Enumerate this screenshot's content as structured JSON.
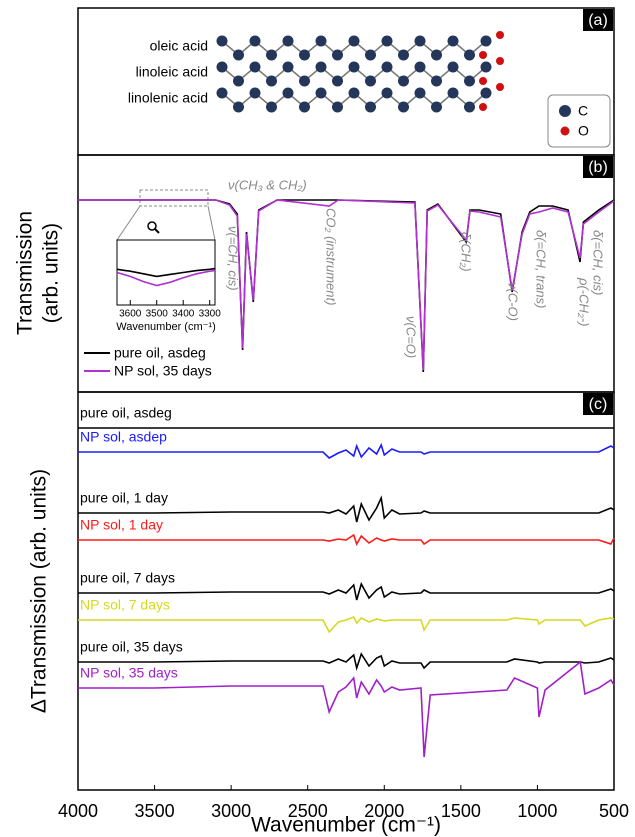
{
  "diagram": {
    "panel_label": "(a)",
    "molecules": [
      "oleic acid",
      "linoleic acid",
      "linolenic acid"
    ],
    "legend": [
      "C",
      "O"
    ]
  },
  "chart_data": [
    {
      "type": "line",
      "panel_label": "(b)",
      "y_label_lines": [
        "Transmission",
        "(arb. units)"
      ],
      "x": [
        4000,
        3100,
        3010,
        2960,
        2925,
        2900,
        2855,
        2820,
        2700,
        2360,
        2300,
        1800,
        1745,
        1720,
        1650,
        1465,
        1440,
        1380,
        1240,
        1165,
        1100,
        1050,
        990,
        900,
        800,
        722,
        700,
        600,
        500
      ],
      "xlim": [
        4000,
        500
      ],
      "ylim": [
        0,
        237
      ],
      "series": [
        {
          "name": "pure oil, asdeg",
          "color": "#000000",
          "values": [
            192,
            192,
            188,
            178,
            42,
            160,
            90,
            182,
            192,
            192,
            192,
            190,
            20,
            182,
            188,
            150,
            182,
            182,
            178,
            100,
            160,
            180,
            186,
            186,
            182,
            130,
            170,
            182,
            192
          ]
        },
        {
          "name": "NP sol, 35 days",
          "color": "#b030d0",
          "values": [
            192,
            192,
            187,
            176,
            44,
            158,
            92,
            181,
            192,
            186,
            192,
            189,
            22,
            181,
            187,
            152,
            181,
            180,
            175,
            102,
            158,
            178,
            180,
            184,
            180,
            134,
            168,
            180,
            191
          ]
        }
      ],
      "annotations": [
        "ν(CH₃ & CH₂)",
        "ν(=CH, cis)",
        "CO₂ (instrument)",
        "ν(C=O)",
        "δ(CH₂)",
        "ν(C-O)",
        "δ(=CH, trans)",
        "ρ(-CH₂-)",
        "δ(=CH, cis)"
      ]
    },
    {
      "type": "line",
      "x_label": "Wavenumber (cm⁻¹)",
      "x": [
        3650,
        3600,
        3550,
        3500,
        3450,
        3400,
        3350,
        3300,
        3280
      ],
      "xlim": [
        3650,
        3280
      ],
      "ylim": [
        0,
        10
      ],
      "xticks": [
        3600,
        3500,
        3400,
        3300
      ],
      "series": [
        {
          "color": "#000000",
          "values": [
            5.5,
            5.2,
            4.8,
            4.4,
            4.7,
            5.0,
            5.3,
            5.5,
            5.6
          ]
        },
        {
          "color": "#b030d0",
          "values": [
            5.0,
            4.4,
            3.6,
            3.0,
            3.5,
            4.2,
            4.8,
            5.2,
            5.3
          ]
        }
      ]
    },
    {
      "type": "line",
      "panel_label": "(c)",
      "y_label": "ΔTransmission (arb. units)",
      "x_label": "Wavenumber (cm⁻¹)",
      "x": [
        4000,
        3500,
        3000,
        2400,
        2360,
        2300,
        2250,
        2200,
        2180,
        2150,
        2100,
        2050,
        2020,
        2000,
        1950,
        1900,
        1760,
        1740,
        1700,
        1200,
        1150,
        1000,
        990,
        950,
        720,
        690,
        600,
        520,
        500
      ],
      "xlim": [
        4000,
        500
      ],
      "ylim": [
        0,
        398
      ],
      "xticks": [
        4000,
        3500,
        3000,
        2500,
        2000,
        1500,
        1000,
        500
      ],
      "series": [
        {
          "name": "pure oil, asdeg",
          "color": "#000000",
          "values": [
            362,
            362,
            362,
            362,
            362,
            362,
            362,
            362,
            362,
            362,
            362,
            362,
            362,
            362,
            362,
            362,
            362,
            362,
            362,
            362,
            362,
            362,
            362,
            362,
            362,
            362,
            362,
            362,
            362
          ]
        },
        {
          "name": "NP sol, asdep",
          "color": "#1a1aff",
          "values": [
            338,
            338,
            338,
            338,
            332,
            337,
            340,
            334,
            344,
            333,
            342,
            336,
            345,
            335,
            341,
            338,
            338,
            336,
            338,
            338,
            338,
            338,
            338,
            338,
            338,
            338,
            338,
            344,
            342
          ]
        },
        {
          "name": "pure oil, 1 day",
          "color": "#000000",
          "values": [
            277,
            277,
            278,
            278,
            277,
            280,
            276,
            284,
            268,
            286,
            270,
            282,
            292,
            272,
            280,
            276,
            277,
            279,
            277,
            277,
            277,
            277,
            277,
            277,
            277,
            277,
            277,
            282,
            280
          ]
        },
        {
          "name": "NP sol, 1 day",
          "color": "#ff1a1a",
          "values": [
            250,
            250,
            250,
            250,
            249,
            251,
            250,
            255,
            246,
            254,
            247,
            252,
            250,
            249,
            251,
            250,
            250,
            246,
            250,
            250,
            250,
            250,
            250,
            250,
            250,
            250,
            250,
            246,
            252
          ]
        },
        {
          "name": "pure oil, 7 days",
          "color": "#000000",
          "values": [
            197,
            197,
            198,
            198,
            196,
            200,
            197,
            205,
            190,
            206,
            192,
            200,
            203,
            193,
            198,
            196,
            197,
            200,
            197,
            197,
            197,
            197,
            197,
            197,
            197,
            197,
            197,
            201,
            199
          ]
        },
        {
          "name": "NP sol, 7 days",
          "color": "#d8d820",
          "values": [
            170,
            170,
            170,
            170,
            158,
            168,
            170,
            173,
            167,
            172,
            168,
            171,
            170,
            169,
            170,
            170,
            170,
            160,
            170,
            170,
            172,
            170,
            166,
            170,
            170,
            164,
            170,
            172,
            171
          ]
        },
        {
          "name": "pure oil, 35 days",
          "color": "#000000",
          "values": [
            128,
            128,
            129,
            129,
            127,
            131,
            128,
            135,
            122,
            136,
            124,
            132,
            134,
            124,
            129,
            127,
            127,
            122,
            128,
            128,
            131,
            128,
            127,
            128,
            128,
            127,
            128,
            132,
            130
          ]
        },
        {
          "name": "NP sol, 35 days",
          "color": "#a020c8",
          "values": [
            102,
            102,
            104,
            104,
            78,
            98,
            103,
            112,
            92,
            108,
            96,
            110,
            104,
            98,
            103,
            100,
            102,
            33,
            95,
            100,
            112,
            102,
            73,
            100,
            128,
            96,
            102,
            110,
            105
          ]
        }
      ]
    }
  ]
}
